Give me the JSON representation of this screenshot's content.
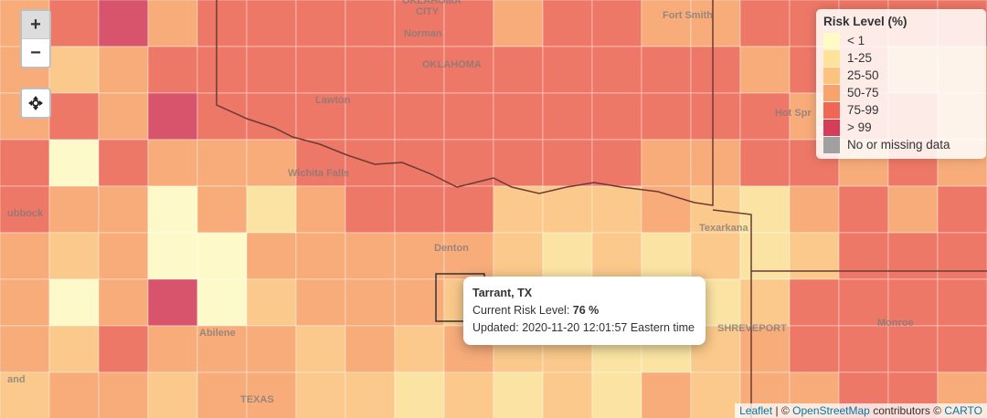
{
  "map": {
    "labels": [
      "OKLAHOMA",
      "CITY",
      "Norman",
      "OKLAHOMA",
      "Lawton",
      "Fort Smith",
      "Hot Spr",
      "Wichita Falls",
      "ubbock",
      "Denton",
      "Texarkana",
      "SHREVEPORT",
      "Monroe",
      "Abilene",
      "TEXAS",
      "and"
    ],
    "zoom_in": "+",
    "zoom_out": "−",
    "legend": {
      "title": "Risk Level (%)",
      "items": [
        {
          "label": "< 1",
          "color": "#fffbc4"
        },
        {
          "label": "1-25",
          "color": "#fde39a"
        },
        {
          "label": "25-50",
          "color": "#fcc47e"
        },
        {
          "label": "50-75",
          "color": "#f8a36b"
        },
        {
          "label": "75-99",
          "color": "#ee6855"
        },
        {
          "label": "> 99",
          "color": "#d53d5b"
        },
        {
          "label": "No or missing data",
          "color": "#a0a0a0"
        }
      ]
    },
    "popup": {
      "title": "Tarrant, TX",
      "risk_label": "Current Risk Level:",
      "risk_value": "76 %",
      "updated": "Updated: 2020-11-20 12:01:57 Eastern time"
    },
    "attribution": {
      "leaflet": "Leaflet",
      "sep": "| ©",
      "osm": "OpenStreetMap",
      "contrib": "contributors ©",
      "carto": "CARTO"
    }
  }
}
